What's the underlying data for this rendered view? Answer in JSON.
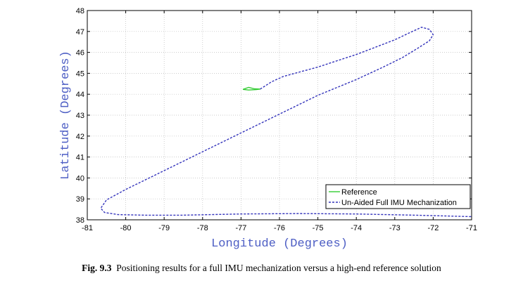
{
  "chart_data": {
    "type": "line",
    "xlabel": "Longitude (Degrees)",
    "ylabel": "Latitude (Degrees)",
    "xlim": [
      -81,
      -71
    ],
    "ylim": [
      38,
      48
    ],
    "xticks": [
      -81,
      -80,
      -79,
      -78,
      -77,
      -76,
      -75,
      -74,
      -73,
      -72,
      -71
    ],
    "yticks": [
      38,
      39,
      40,
      41,
      42,
      43,
      44,
      45,
      46,
      47,
      48
    ],
    "grid": true,
    "legend_position": "bottom-right",
    "series": [
      {
        "name": "Reference",
        "style": "solid",
        "color": "#33cc33",
        "x": [
          -76.95,
          -76.8,
          -76.65,
          -76.5,
          -76.6,
          -76.8,
          -76.95
        ],
        "y": [
          44.23,
          44.33,
          44.26,
          44.25,
          44.22,
          44.2,
          44.23
        ]
      },
      {
        "name": "Un-Aided Full IMU Mechanization",
        "style": "dashed",
        "color": "#3333bb",
        "x": [
          -76.5,
          -76.2,
          -75.9,
          -75.5,
          -75.0,
          -74.5,
          -74.0,
          -73.5,
          -73.0,
          -72.6,
          -72.3,
          -72.1,
          -72.0,
          -72.1,
          -72.4,
          -72.8,
          -73.3,
          -74.0,
          -75.0,
          -76.0,
          -77.0,
          -78.0,
          -79.0,
          -80.0,
          -80.5,
          -80.65,
          -80.55,
          -80.2,
          -79.5,
          -78.5,
          -77.0,
          -75.5,
          -74.0,
          -72.5,
          -71.0
        ],
        "y": [
          44.25,
          44.6,
          44.85,
          45.05,
          45.3,
          45.6,
          45.9,
          46.25,
          46.6,
          46.95,
          47.2,
          47.1,
          46.85,
          46.55,
          46.2,
          45.75,
          45.3,
          44.7,
          43.95,
          43.05,
          42.15,
          41.25,
          40.35,
          39.45,
          38.95,
          38.55,
          38.35,
          38.25,
          38.22,
          38.22,
          38.28,
          38.3,
          38.28,
          38.22,
          38.15
        ]
      }
    ]
  },
  "caption": {
    "label": "Fig. 9.3",
    "text": "Positioning results for a full IMU mechanization versus a high-end reference solution"
  }
}
